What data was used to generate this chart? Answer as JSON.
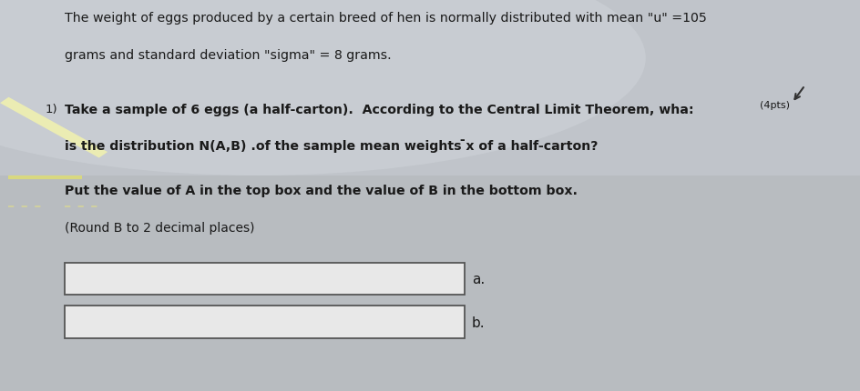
{
  "background_color": "#b8bcc0",
  "text_color": "#1a1a1a",
  "box_color": "#e8e8e8",
  "box_border_color": "#555555",
  "line1": "The weight of eggs produced by a certain breed of hen is normally distributed with mean \"u\" =105",
  "line2": "grams and standard deviation \"sigma\" = 8 grams.",
  "question_number": "1)",
  "q_line1": "Take a sample of 6 eggs (a half-carton).  According to the Central Limit Theorem, wha:",
  "q_line2": "is the distribution N(A,B) .of the sample mean weights ̄x of a half-carton?",
  "pts_label": "(4pts)",
  "instruction1": "Put the value of A in the top box and the value of B in the bottom box.",
  "instruction2": "(Round B to 2 decimal places)",
  "label_a": "a.",
  "label_b": "b.",
  "yellow_color": "#f0f0a0",
  "dash_color": "#c8c870",
  "dash2_color": "#c8c870",
  "cursor_color": "#333333"
}
